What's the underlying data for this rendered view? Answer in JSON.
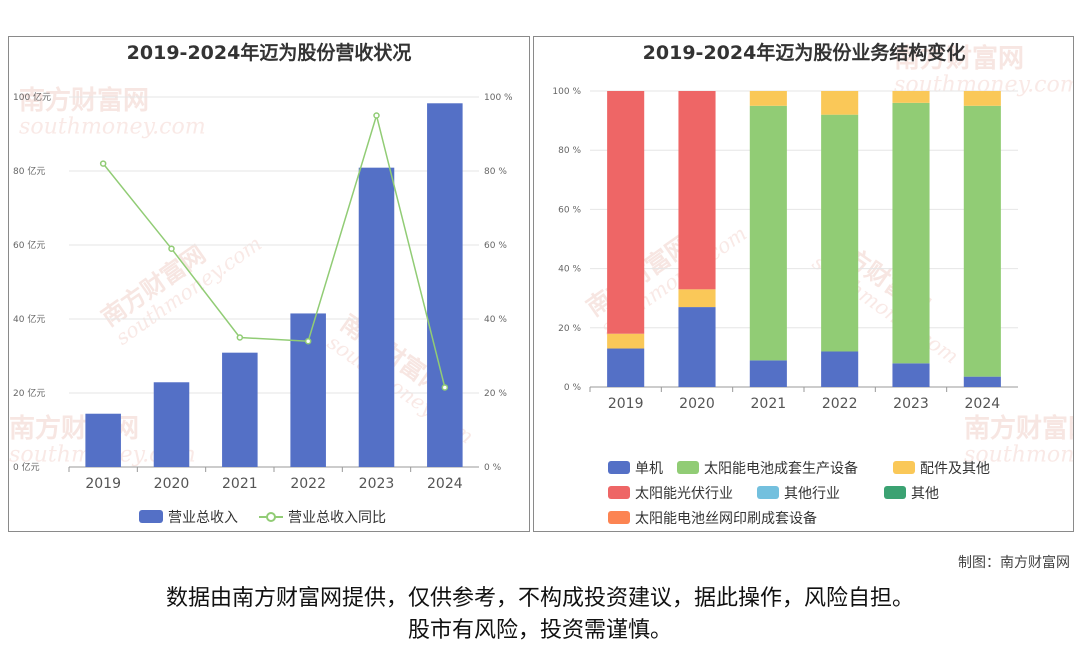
{
  "watermark": {
    "text": "南方财富网",
    "url": "southmoney.com"
  },
  "credit": "制图：南方财富网",
  "disclaimer": {
    "line1": "数据由南方财富网提供，仅供参考，不构成投资建议，据此操作，风险自担。",
    "line2": "股市有风险，投资需谨慎。"
  },
  "colors": {
    "bar": "#5470c6",
    "line": "#91cc75",
    "单机": "#5470c6",
    "太阳能电池成套生产设备": "#91cc75",
    "配件及其他": "#fac858",
    "太阳能光伏行业": "#ee6666",
    "其他行业": "#73c0de",
    "其他": "#3ba272",
    "太阳能电池丝网印刷成套设备": "#fc8452"
  },
  "chart_data": [
    {
      "type": "bar",
      "title": "2019-2024年迈为股份营收状况",
      "categories": [
        "2019",
        "2020",
        "2021",
        "2022",
        "2023",
        "2024"
      ],
      "y_left": {
        "ticks": [
          "0 亿元",
          "20 亿元",
          "40 亿元",
          "60 亿元",
          "80 亿元",
          "100 亿元"
        ],
        "ylim": [
          0,
          100
        ]
      },
      "y_right": {
        "ticks": [
          "0 %",
          "20 %",
          "40 %",
          "60 %",
          "80 %",
          "100 %"
        ],
        "ylim": [
          0,
          100
        ]
      },
      "series": [
        {
          "name": "营业总收入",
          "kind": "bar",
          "axis": "left",
          "values": [
            14.4,
            22.9,
            30.9,
            41.5,
            80.9,
            98.3
          ]
        },
        {
          "name": "营业总收入同比",
          "kind": "line",
          "axis": "right",
          "values": [
            82.0,
            59.0,
            35.0,
            34.0,
            95.0,
            21.5
          ]
        }
      ],
      "grid": true,
      "legend_position": "bottom"
    },
    {
      "type": "bar",
      "stacked": true,
      "title": "2019-2024年迈为股份业务结构变化",
      "categories": [
        "2019",
        "2020",
        "2021",
        "2022",
        "2023",
        "2024"
      ],
      "y": {
        "ticks": [
          "0 %",
          "20 %",
          "40 %",
          "60 %",
          "80 %",
          "100 %"
        ],
        "ylim": [
          0,
          100
        ]
      },
      "series": [
        {
          "name": "单机",
          "values": [
            13,
            27,
            9,
            12,
            8,
            3.5
          ]
        },
        {
          "name": "太阳能电池成套生产设备",
          "values": [
            0,
            0,
            86,
            80,
            88,
            91.5
          ]
        },
        {
          "name": "配件及其他",
          "values": [
            5,
            6,
            5,
            8,
            4,
            5
          ]
        },
        {
          "name": "太阳能光伏行业",
          "values": [
            82,
            67,
            0,
            0,
            0,
            0
          ]
        },
        {
          "name": "其他行业",
          "values": [
            0,
            0,
            0,
            0,
            0,
            0
          ]
        },
        {
          "name": "其他",
          "values": [
            0,
            0,
            0,
            0,
            0,
            0
          ]
        },
        {
          "name": "太阳能电池丝网印刷成套设备",
          "values": [
            0,
            0,
            0,
            0,
            0,
            0
          ]
        }
      ],
      "grid": true,
      "legend_position": "bottom"
    }
  ]
}
